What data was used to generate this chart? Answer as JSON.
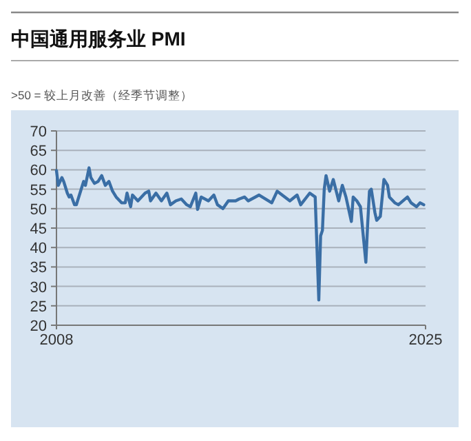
{
  "chart_data": {
    "type": "line",
    "title": "中国通用服务业 PMI",
    "subtitle": ">50 = 较上月改善（经季节调整）",
    "x": [
      "2008-01",
      "2008-02",
      "2008-04",
      "2008-05",
      "2008-07",
      "2008-08",
      "2008-09",
      "2008-11",
      "2008-12",
      "2009-02",
      "2009-04",
      "2009-05",
      "2009-07",
      "2009-08",
      "2009-10",
      "2009-12",
      "2010-02",
      "2010-04",
      "2010-06",
      "2010-08",
      "2010-10",
      "2011-01",
      "2011-03",
      "2011-04",
      "2011-06",
      "2011-07",
      "2011-10",
      "2012-02",
      "2012-04",
      "2012-05",
      "2012-08",
      "2012-11",
      "2013-02",
      "2013-04",
      "2013-07",
      "2013-10",
      "2014-01",
      "2014-03",
      "2014-06",
      "2014-07",
      "2014-09",
      "2015-01",
      "2015-04",
      "2015-06",
      "2015-09",
      "2015-12",
      "2016-04",
      "2016-06",
      "2016-09",
      "2016-11",
      "2017-05",
      "2017-12",
      "2018-03",
      "2018-10",
      "2019-02",
      "2019-04",
      "2019-09",
      "2019-12",
      "2020-02",
      "2020-03",
      "2020-04",
      "2020-05",
      "2020-06",
      "2020-08",
      "2020-10",
      "2021-01",
      "2021-03",
      "2021-05",
      "2021-08",
      "2021-09",
      "2021-11",
      "2022-01",
      "2022-04",
      "2022-05",
      "2022-06",
      "2022-07",
      "2022-09",
      "2022-10",
      "2022-12",
      "2023-02",
      "2023-04",
      "2023-05",
      "2023-08",
      "2023-10",
      "2024-03",
      "2024-05",
      "2024-08",
      "2024-10",
      "2024-12"
    ],
    "values": [
      59.8,
      56,
      58,
      57,
      54,
      53,
      53.5,
      51,
      51,
      54,
      57,
      56,
      60.5,
      58,
      56.5,
      57,
      58.5,
      56,
      57,
      54.5,
      53,
      51.5,
      51.5,
      54,
      50.5,
      53.5,
      52,
      54,
      54.5,
      52,
      54,
      52,
      54,
      51,
      52,
      52.5,
      51,
      50.5,
      54,
      49.8,
      53,
      52,
      53.5,
      51,
      50,
      52,
      52,
      52.5,
      53,
      52,
      53.5,
      51.5,
      54.5,
      52,
      53.5,
      51,
      54,
      53,
      26.5,
      43,
      44.4,
      55,
      58.5,
      54.5,
      57.5,
      52,
      56,
      53,
      46.7,
      53,
      52,
      50.5,
      36.2,
      46,
      54.5,
      55,
      49,
      47,
      48,
      57.5,
      56,
      53,
      51.5,
      51,
      53,
      51.5,
      50.5,
      51.5,
      51
    ],
    "color": "#3a6ea5",
    "xlim": [
      "2008",
      "2025"
    ],
    "xticks": [
      "2008",
      "2025"
    ],
    "ylim": [
      20,
      70
    ],
    "yticks": [
      20,
      25,
      30,
      35,
      40,
      45,
      50,
      55,
      60,
      65,
      70
    ],
    "grid": "y"
  }
}
